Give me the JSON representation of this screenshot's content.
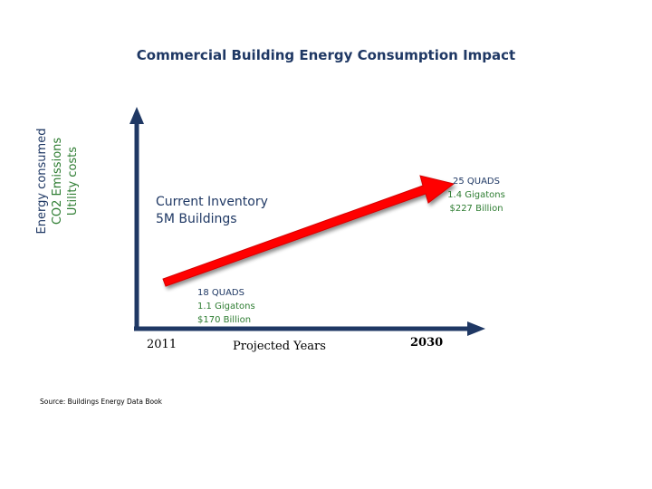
{
  "title": "Commercial Building Energy Consumption Impact",
  "y_axis": {
    "lines": [
      "Energy consumed",
      "CO2 Emissions",
      "Utility costs"
    ],
    "colors": [
      "#1f3864",
      "#2e7d32",
      "#2e4a7a"
    ]
  },
  "x_axis": {
    "label": "Projected Years",
    "start_year": "2011",
    "end_year": "2030"
  },
  "current_inventory": {
    "line1": "Current Inventory",
    "line2": "5M Buildings"
  },
  "start_point": {
    "energy": "18 QUADS",
    "emissions": "1.1 Gigatons",
    "cost": "$170 Billion"
  },
  "end_point": {
    "energy": "25 QUADS",
    "emissions": "1.4 Gigatons",
    "cost": "$227 Billion"
  },
  "source": "Source: Buildings Energy Data Book",
  "colors": {
    "axis": "#1f3864",
    "arrow": "#ff0000",
    "title": "#1f3864"
  }
}
